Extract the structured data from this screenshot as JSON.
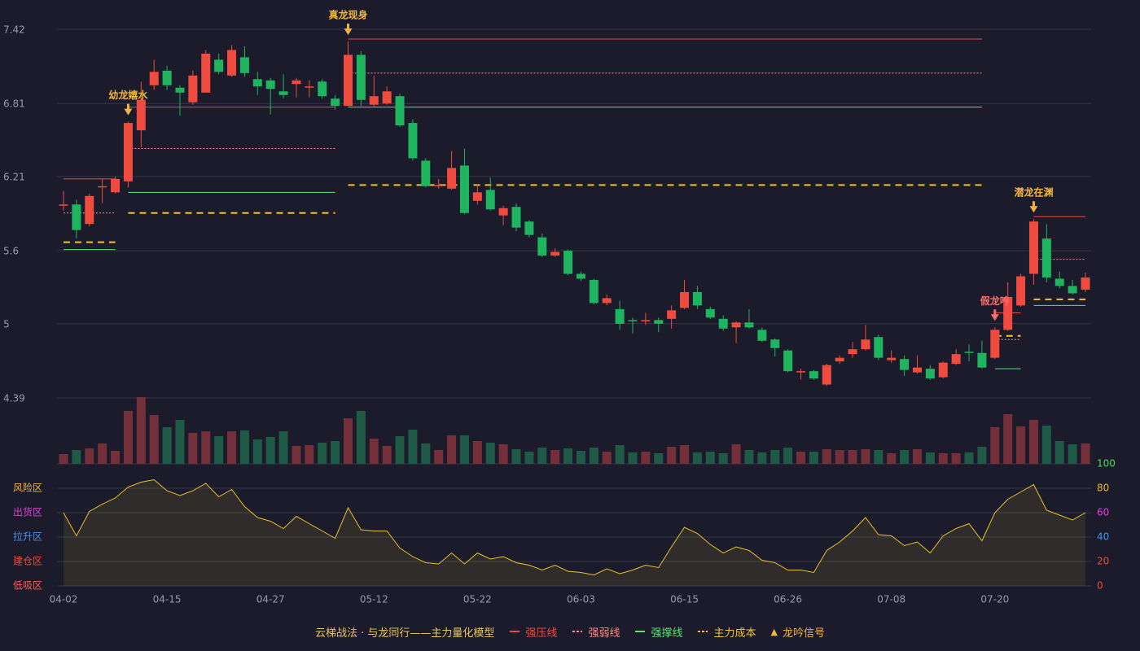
{
  "chart_data": {
    "type": "candlestick",
    "categories": [
      "04-02",
      null,
      null,
      null,
      null,
      null,
      null,
      null,
      "04-15",
      null,
      null,
      null,
      null,
      null,
      null,
      null,
      "04-27",
      null,
      null,
      null,
      null,
      null,
      null,
      null,
      "05-12",
      null,
      null,
      null,
      null,
      null,
      null,
      null,
      "05-22",
      null,
      null,
      null,
      null,
      null,
      null,
      null,
      "06-03",
      null,
      null,
      null,
      null,
      null,
      null,
      null,
      "06-15",
      null,
      null,
      null,
      null,
      null,
      null,
      null,
      "06-26",
      null,
      null,
      null,
      null,
      null,
      null,
      null,
      "07-08",
      null,
      null,
      null,
      null,
      null,
      null,
      null,
      "07-20",
      null,
      null,
      null,
      null,
      null,
      null,
      null
    ],
    "open": [
      5.97,
      5.98,
      5.82,
      6.12,
      6.08,
      6.17,
      6.59,
      6.96,
      7.08,
      6.94,
      6.82,
      6.9,
      7.17,
      7.04,
      7.19,
      7.01,
      7.0,
      6.91,
      6.97,
      6.94,
      6.99,
      6.85,
      6.79,
      7.21,
      6.8,
      6.81,
      6.87,
      6.65,
      6.34,
      6.13,
      6.11,
      6.3,
      6.01,
      6.1,
      5.89,
      5.96,
      5.84,
      5.71,
      5.56,
      5.6,
      5.41,
      5.36,
      5.17,
      5.12,
      5.03,
      5.02,
      5.03,
      5.04,
      5.13,
      5.26,
      5.12,
      5.04,
      4.97,
      5.01,
      4.95,
      4.87,
      4.78,
      4.6,
      4.61,
      4.5,
      4.69,
      4.75,
      4.79,
      4.89,
      4.7,
      4.71,
      4.6,
      4.63,
      4.56,
      4.67,
      4.77,
      4.76,
      4.72,
      4.95,
      5.15,
      5.41,
      5.7,
      5.37,
      5.31,
      5.28
    ],
    "high": [
      6.09,
      6.02,
      6.07,
      6.19,
      6.21,
      6.66,
      6.99,
      7.17,
      7.12,
      6.96,
      7.08,
      7.25,
      7.22,
      7.29,
      7.28,
      7.07,
      7.02,
      7.05,
      7.02,
      7.0,
      7.01,
      6.88,
      7.32,
      7.24,
      7.04,
      6.95,
      6.89,
      6.68,
      6.36,
      6.19,
      6.42,
      6.44,
      6.15,
      6.2,
      5.97,
      5.99,
      5.85,
      5.74,
      5.62,
      5.61,
      5.43,
      5.37,
      5.24,
      5.19,
      5.05,
      5.09,
      5.05,
      5.15,
      5.36,
      5.31,
      5.14,
      5.07,
      5.02,
      5.12,
      4.97,
      4.88,
      4.79,
      4.63,
      4.62,
      4.67,
      4.74,
      4.85,
      4.99,
      4.91,
      4.78,
      4.74,
      4.74,
      4.66,
      4.69,
      4.79,
      4.83,
      4.86,
      4.97,
      5.34,
      5.41,
      5.86,
      5.82,
      5.43,
      5.36,
      5.42
    ],
    "low": [
      5.93,
      5.7,
      5.8,
      5.99,
      6.07,
      6.12,
      6.45,
      6.92,
      6.92,
      6.71,
      6.8,
      6.9,
      7.05,
      7.03,
      7.03,
      6.88,
      6.72,
      6.85,
      6.86,
      6.86,
      6.85,
      6.76,
      6.79,
      6.79,
      6.78,
      6.8,
      6.62,
      6.34,
      6.12,
      6.11,
      6.1,
      5.9,
      5.98,
      5.93,
      5.81,
      5.76,
      5.71,
      5.55,
      5.55,
      5.4,
      5.35,
      5.16,
      5.15,
      4.95,
      4.92,
      4.99,
      4.93,
      4.96,
      5.12,
      5.12,
      5.04,
      4.94,
      4.84,
      4.96,
      4.85,
      4.73,
      4.6,
      4.54,
      4.54,
      4.49,
      4.67,
      4.72,
      4.78,
      4.7,
      4.68,
      4.57,
      4.59,
      4.54,
      4.55,
      4.66,
      4.69,
      4.63,
      4.71,
      4.94,
      5.14,
      5.32,
      5.34,
      5.29,
      5.24,
      5.26
    ],
    "close": [
      5.98,
      5.77,
      6.05,
      6.13,
      6.19,
      6.65,
      6.84,
      7.07,
      6.96,
      6.9,
      7.04,
      7.22,
      7.07,
      7.25,
      7.06,
      6.95,
      6.93,
      6.88,
      7.0,
      6.95,
      6.87,
      6.79,
      7.21,
      6.84,
      6.87,
      6.91,
      6.63,
      6.36,
      6.13,
      6.14,
      6.28,
      5.91,
      6.08,
      5.94,
      5.95,
      5.79,
      5.73,
      5.56,
      5.59,
      5.41,
      5.37,
      5.17,
      5.21,
      5.0,
      5.02,
      5.03,
      5.0,
      5.11,
      5.26,
      5.15,
      5.05,
      4.96,
      5.01,
      4.97,
      4.86,
      4.8,
      4.61,
      4.61,
      4.55,
      4.66,
      4.72,
      4.79,
      4.87,
      4.72,
      4.72,
      4.62,
      4.64,
      4.55,
      4.68,
      4.75,
      4.76,
      4.64,
      4.95,
      5.22,
      5.39,
      5.84,
      5.38,
      5.31,
      5.25,
      5.38
    ],
    "volume": [
      12,
      17,
      19,
      25,
      16,
      65,
      82,
      60,
      45,
      54,
      38,
      40,
      34,
      40,
      41,
      30,
      33,
      40,
      22,
      23,
      26,
      28,
      56,
      65,
      31,
      22,
      34,
      42,
      25,
      17,
      35,
      35,
      28,
      26,
      24,
      18,
      15,
      20,
      17,
      19,
      16,
      20,
      15,
      23,
      14,
      15,
      13,
      21,
      23,
      14,
      15,
      13,
      24,
      17,
      14,
      17,
      20,
      15,
      15,
      18,
      17,
      17,
      18,
      17,
      13,
      17,
      18,
      14,
      13,
      13,
      14,
      21,
      45,
      61,
      46,
      54,
      47,
      28,
      24,
      25
    ],
    "up_color": "#ef4b3f",
    "down_color": "#1fb45f",
    "volume_up_color": "#74303a",
    "volume_down_color": "#1f5a47",
    "ylim": [
      4.39,
      7.42
    ],
    "yticks": [
      4.39,
      5.0,
      5.6,
      6.21,
      6.81,
      7.42
    ],
    "grid": true,
    "levels": [
      {
        "name": "强压线",
        "color": "#ef4b3f",
        "dash": "none",
        "values": [
          6.19,
          6.19,
          6.19,
          6.19,
          6.19,
          6.78,
          6.78,
          6.78,
          6.78,
          6.78,
          6.78,
          6.78,
          6.78,
          6.78,
          6.78,
          6.78,
          6.78,
          6.78,
          6.78,
          6.78,
          6.78,
          6.78,
          7.34,
          7.34,
          7.34,
          7.34,
          7.34,
          7.34,
          7.34,
          7.34,
          7.34,
          7.34,
          7.34,
          7.34,
          7.34,
          7.34,
          7.34,
          7.34,
          7.34,
          7.34,
          7.34,
          7.34,
          7.34,
          7.34,
          7.34,
          7.34,
          7.34,
          7.34,
          7.34,
          7.34,
          7.34,
          7.34,
          7.34,
          7.34,
          7.34,
          7.34,
          7.34,
          7.34,
          7.34,
          7.34,
          7.34,
          7.34,
          7.34,
          7.34,
          7.34,
          7.34,
          7.34,
          7.34,
          7.34,
          7.34,
          7.34,
          7.34,
          5.09,
          5.09,
          5.09,
          5.88,
          5.88,
          5.88,
          5.88,
          5.88
        ]
      },
      {
        "name": "强弱线",
        "color": "#ff8a8a",
        "dash": "2,2",
        "values": [
          5.91,
          5.91,
          5.91,
          5.91,
          5.91,
          6.44,
          6.44,
          6.44,
          6.44,
          6.44,
          6.44,
          6.44,
          6.44,
          6.44,
          6.44,
          6.44,
          6.44,
          6.44,
          6.44,
          6.44,
          6.44,
          6.44,
          7.06,
          7.06,
          7.06,
          7.06,
          7.06,
          7.06,
          7.06,
          7.06,
          7.06,
          7.06,
          7.06,
          7.06,
          7.06,
          7.06,
          7.06,
          7.06,
          7.06,
          7.06,
          7.06,
          7.06,
          7.06,
          7.06,
          7.06,
          7.06,
          7.06,
          7.06,
          7.06,
          7.06,
          7.06,
          7.06,
          7.06,
          7.06,
          7.06,
          7.06,
          7.06,
          7.06,
          7.06,
          7.06,
          7.06,
          7.06,
          7.06,
          7.06,
          7.06,
          7.06,
          7.06,
          7.06,
          7.06,
          7.06,
          7.06,
          7.06,
          4.87,
          4.87,
          4.87,
          5.53,
          5.53,
          5.53,
          5.53,
          5.53
        ]
      },
      {
        "name": "强撑线",
        "color": "#5be37a",
        "dash": "none",
        "values": [
          5.61,
          5.61,
          5.61,
          5.61,
          5.61,
          6.08,
          6.08,
          6.08,
          6.08,
          6.08,
          6.08,
          6.08,
          6.08,
          6.08,
          6.08,
          6.08,
          6.08,
          6.08,
          6.08,
          6.08,
          6.08,
          6.08,
          6.78,
          6.78,
          6.78,
          6.78,
          6.78,
          6.78,
          6.78,
          6.78,
          6.78,
          6.78,
          6.78,
          6.78,
          6.78,
          6.78,
          6.78,
          6.78,
          6.78,
          6.78,
          6.78,
          6.78,
          6.78,
          6.78,
          6.78,
          6.78,
          6.78,
          6.78,
          6.78,
          6.78,
          6.78,
          6.78,
          6.78,
          6.78,
          6.78,
          6.78,
          6.78,
          6.78,
          6.78,
          6.78,
          6.78,
          6.78,
          6.78,
          6.78,
          6.78,
          6.78,
          6.78,
          6.78,
          6.78,
          6.78,
          6.78,
          6.78,
          4.63,
          4.63,
          4.63,
          5.15,
          5.15,
          5.15,
          5.15,
          5.15
        ]
      },
      {
        "name": "主力成本",
        "color": "#f2c230",
        "dash": "8,6",
        "values": [
          5.67,
          5.67,
          5.67,
          5.67,
          5.67,
          5.91,
          5.91,
          5.91,
          5.91,
          5.91,
          5.91,
          5.91,
          5.91,
          5.91,
          5.91,
          5.91,
          5.91,
          5.91,
          5.91,
          5.91,
          5.91,
          5.91,
          6.14,
          6.14,
          6.14,
          6.14,
          6.14,
          6.14,
          6.14,
          6.14,
          6.14,
          6.14,
          6.14,
          6.14,
          6.14,
          6.14,
          6.14,
          6.14,
          6.14,
          6.14,
          6.14,
          6.14,
          6.14,
          6.14,
          6.14,
          6.14,
          6.14,
          6.14,
          6.14,
          6.14,
          6.14,
          6.14,
          6.14,
          6.14,
          6.14,
          6.14,
          6.14,
          6.14,
          6.14,
          6.14,
          6.14,
          6.14,
          6.14,
          6.14,
          6.14,
          6.14,
          6.14,
          6.14,
          6.14,
          6.14,
          6.14,
          6.14,
          4.9,
          4.9,
          4.9,
          5.2,
          5.2,
          5.2,
          5.2,
          5.2
        ]
      }
    ],
    "signals": [
      {
        "index": 5,
        "label": "幼龙嬉水",
        "color": "#f2b63a"
      },
      {
        "index": 22,
        "label": "真龙现身",
        "color": "#f2b63a"
      },
      {
        "index": 72,
        "label": "假龙吟",
        "color": "#ff6b6b"
      },
      {
        "index": 75,
        "label": "潜龙在渊",
        "color": "#f2b63a"
      }
    ],
    "indicator": {
      "values": [
        60,
        41,
        61,
        67,
        72,
        81,
        85,
        87,
        78,
        74,
        78,
        84,
        73,
        79,
        65,
        56,
        53,
        47,
        57,
        51,
        45,
        39,
        64,
        46,
        45,
        45,
        31,
        24,
        19,
        18,
        27,
        18,
        27,
        22,
        24,
        19,
        17,
        13,
        17,
        12,
        11,
        9,
        14,
        10,
        13,
        17,
        15,
        32,
        48,
        43,
        34,
        27,
        32,
        29,
        21,
        19,
        13,
        13,
        11,
        29,
        36,
        45,
        56,
        42,
        41,
        33,
        36,
        27,
        41,
        47,
        51,
        37,
        60,
        71,
        77,
        83,
        62,
        58,
        54,
        60
      ],
      "color": "#e6c229",
      "y2lim": [
        0,
        100
      ],
      "y2ticks": [
        0,
        20,
        40,
        60,
        80,
        100
      ],
      "tick_colors": [
        "#ef4b3f",
        "#ef4b3f",
        "#4a90f0",
        "#e040e0",
        "#f2b63a",
        "#3ee05a"
      ],
      "zone_labels": [
        "低吸区",
        "建仓区",
        "拉升区",
        "出货区",
        "风险区"
      ],
      "zone_colors": [
        "#ff5a5a",
        "#ef4b3f",
        "#4a90f0",
        "#e040e0",
        "#f2b63a"
      ]
    },
    "legend_title": "云梯战法 · 与龙同行——主力量化模型",
    "signal_legend": {
      "name": "龙吟信号",
      "color": "#f2b63a"
    }
  }
}
